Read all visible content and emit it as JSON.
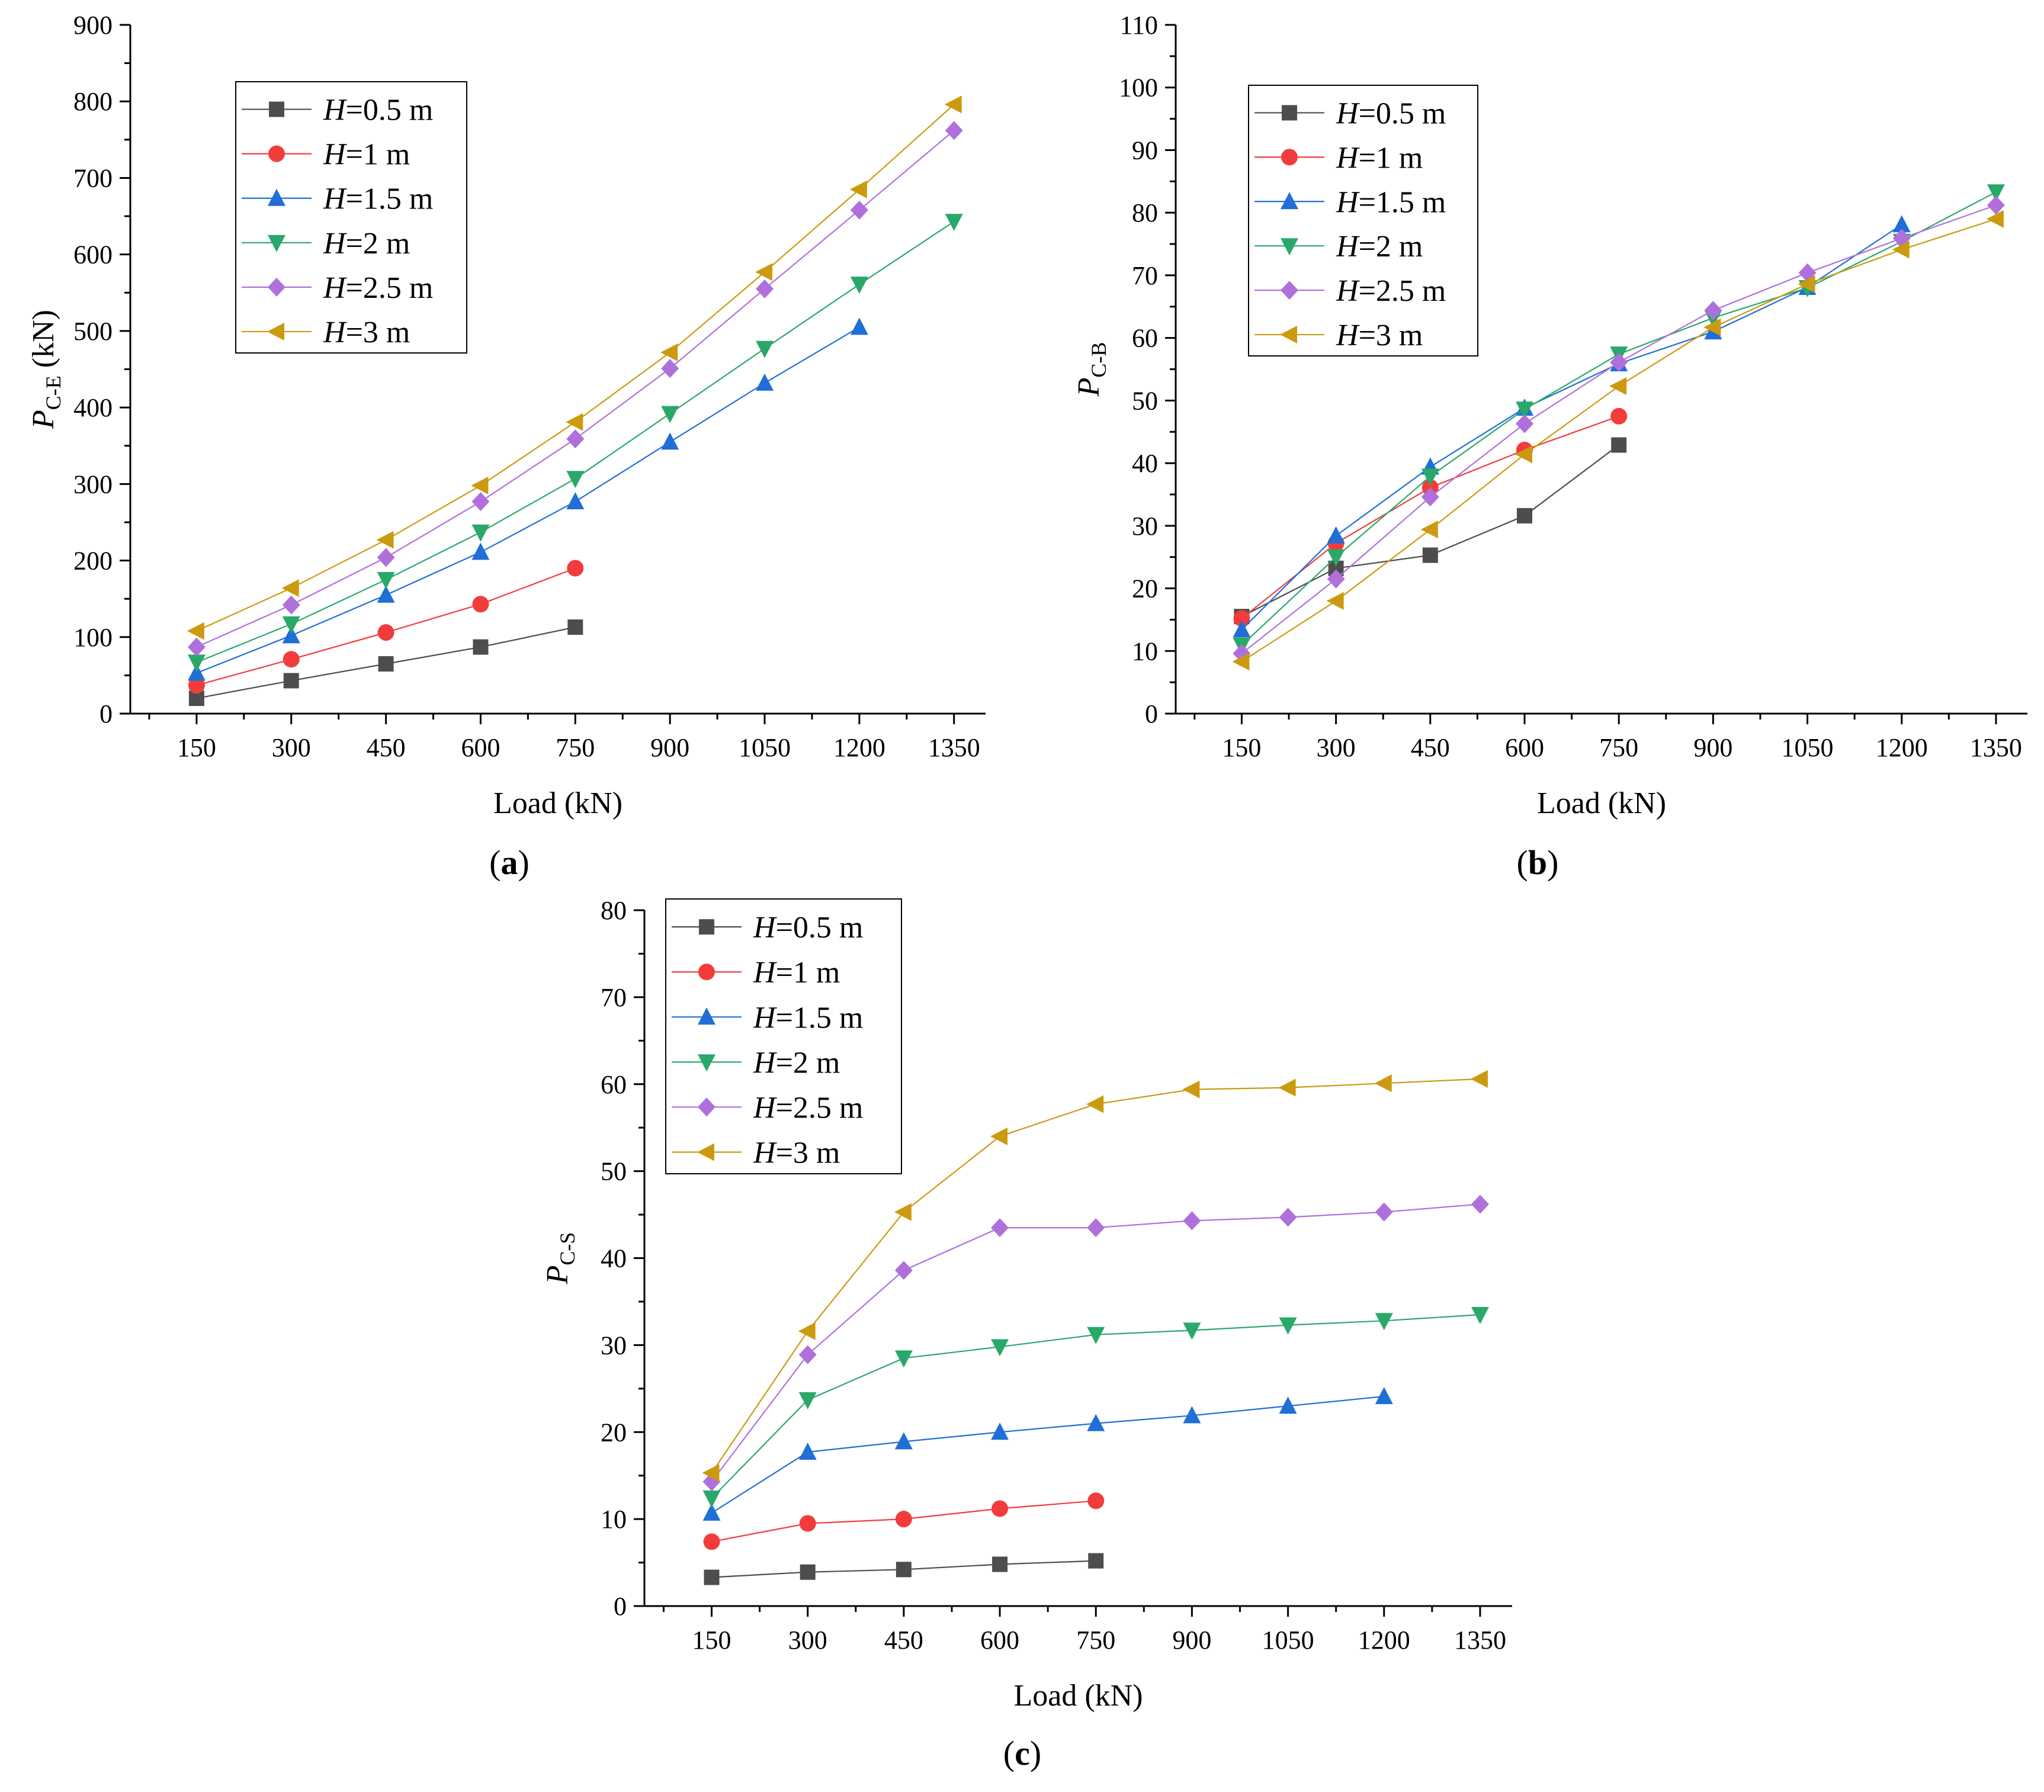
{
  "series_styles": [
    {
      "label_value": "0.5 m",
      "color": "#4d4d4d",
      "marker": "square"
    },
    {
      "label_value": "1 m",
      "color": "#f23c3c",
      "marker": "circle"
    },
    {
      "label_value": "1.5 m",
      "color": "#1f6fd6",
      "marker": "triangle-up"
    },
    {
      "label_value": "2 m",
      "color": "#2aa86a",
      "marker": "triangle-down"
    },
    {
      "label_value": "2.5 m",
      "color": "#b070dc",
      "marker": "diamond"
    },
    {
      "label_value": "3 m",
      "color": "#cc9a10",
      "marker": "triangle-left"
    }
  ],
  "legend_prefix": "H",
  "legend_eq": "=",
  "chart_data": [
    {
      "type": "line",
      "panel_label": "(a)",
      "title": "",
      "xlabel": "Load (kN)",
      "ylabel_main": "P",
      "ylabel_sub": "C-E",
      "ylabel_unit": " (kN)",
      "x_ticks": [
        150,
        300,
        450,
        600,
        750,
        900,
        1050,
        1200,
        1350
      ],
      "xlim": [
        45,
        1400
      ],
      "ylim": [
        0,
        900
      ],
      "y_ticks": [
        0,
        100,
        200,
        300,
        400,
        500,
        600,
        700,
        800,
        900
      ],
      "legend_position": "top-left",
      "series": [
        {
          "name": "H=0.5 m",
          "x": [
            150,
            300,
            450,
            600,
            750
          ],
          "values": [
            20,
            43,
            65,
            87,
            113
          ]
        },
        {
          "name": "H=1 m",
          "x": [
            150,
            300,
            450,
            600,
            750
          ],
          "values": [
            37,
            71,
            106,
            143,
            190
          ]
        },
        {
          "name": "H=1.5 m",
          "x": [
            150,
            300,
            450,
            600,
            750,
            900,
            1050,
            1200
          ],
          "values": [
            53,
            102,
            155,
            211,
            277,
            355,
            432,
            505
          ]
        },
        {
          "name": "H=2 m",
          "x": [
            150,
            300,
            450,
            600,
            750,
            900,
            1050,
            1200,
            1350
          ],
          "values": [
            67,
            117,
            175,
            237,
            307,
            392,
            477,
            561,
            643
          ]
        },
        {
          "name": "H=2.5 m",
          "x": [
            150,
            300,
            450,
            600,
            750,
            900,
            1050,
            1200,
            1350
          ],
          "values": [
            87,
            142,
            204,
            277,
            359,
            451,
            555,
            658,
            762
          ]
        },
        {
          "name": "H=3 m",
          "x": [
            150,
            300,
            450,
            600,
            750,
            900,
            1050,
            1200,
            1350
          ],
          "values": [
            108,
            164,
            227,
            298,
            381,
            472,
            577,
            685,
            796
          ]
        }
      ]
    },
    {
      "type": "line",
      "panel_label": "(b)",
      "title": "",
      "xlabel": "Load (kN)",
      "ylabel_main": "P",
      "ylabel_sub": "C-B",
      "ylabel_unit": "",
      "x_ticks": [
        150,
        300,
        450,
        600,
        750,
        900,
        1050,
        1200,
        1350
      ],
      "xlim": [
        45,
        1400
      ],
      "ylim": [
        0,
        110
      ],
      "y_ticks": [
        0,
        10,
        20,
        30,
        40,
        50,
        60,
        70,
        80,
        90,
        100,
        110
      ],
      "legend_position": "top-left",
      "series": [
        {
          "name": "H=0.5 m",
          "x": [
            150,
            300,
            450,
            600,
            750
          ],
          "values": [
            15.5,
            23.2,
            25.3,
            31.6,
            42.9
          ]
        },
        {
          "name": "H=1 m",
          "x": [
            150,
            300,
            450,
            600,
            750
          ],
          "values": [
            15.2,
            27.2,
            36.1,
            42.1,
            47.5
          ]
        },
        {
          "name": "H=1.5 m",
          "x": [
            150,
            300,
            450,
            600,
            750,
            900,
            1050,
            1200
          ],
          "values": [
            13.4,
            28.4,
            39.4,
            48.8,
            55.9,
            61.0,
            68.1,
            78.1
          ]
        },
        {
          "name": "H=2 m",
          "x": [
            150,
            300,
            450,
            600,
            750,
            900,
            1050,
            1200,
            1350
          ],
          "values": [
            10.9,
            25.0,
            37.9,
            48.6,
            57.4,
            63.2,
            68.0,
            75.4,
            83.3
          ]
        },
        {
          "name": "H=2.5 m",
          "x": [
            150,
            300,
            450,
            600,
            750,
            900,
            1050,
            1200,
            1350
          ],
          "values": [
            9.6,
            21.5,
            34.6,
            46.3,
            56.1,
            64.4,
            70.4,
            75.9,
            81.2
          ]
        },
        {
          "name": "H=3 m",
          "x": [
            150,
            300,
            450,
            600,
            750,
            900,
            1050,
            1200,
            1350
          ],
          "values": [
            8.3,
            18.0,
            29.4,
            41.4,
            52.3,
            61.7,
            68.6,
            74.1,
            79.0
          ]
        }
      ]
    },
    {
      "type": "line",
      "panel_label": "(c)",
      "title": "",
      "xlabel": "Load (kN)",
      "ylabel_main": "P",
      "ylabel_sub": "C-S",
      "ylabel_unit": "",
      "x_ticks": [
        150,
        300,
        450,
        600,
        750,
        900,
        1050,
        1200,
        1350
      ],
      "xlim": [
        45,
        1400
      ],
      "ylim": [
        0,
        80
      ],
      "y_ticks": [
        0,
        10,
        20,
        30,
        40,
        50,
        60,
        70,
        80
      ],
      "legend_position": "top-left",
      "series": [
        {
          "name": "H=0.5 m",
          "x": [
            150,
            300,
            450,
            600,
            750
          ],
          "values": [
            3.3,
            3.9,
            4.2,
            4.8,
            5.2
          ]
        },
        {
          "name": "H=1 m",
          "x": [
            150,
            300,
            450,
            600,
            750
          ],
          "values": [
            7.4,
            9.5,
            10.0,
            11.2,
            12.1
          ]
        },
        {
          "name": "H=1.5 m",
          "x": [
            150,
            300,
            450,
            600,
            750,
            900,
            1050,
            1200
          ],
          "values": [
            10.7,
            17.7,
            18.9,
            20.0,
            21.0,
            21.9,
            23.0,
            24.1
          ]
        },
        {
          "name": "H=2 m",
          "x": [
            150,
            300,
            450,
            600,
            750,
            900,
            1050,
            1200,
            1350
          ],
          "values": [
            12.4,
            23.7,
            28.5,
            29.8,
            31.2,
            31.7,
            32.3,
            32.8,
            33.5
          ]
        },
        {
          "name": "H=2.5 m",
          "x": [
            150,
            300,
            450,
            600,
            750,
            900,
            1050,
            1200,
            1350
          ],
          "values": [
            14.3,
            28.9,
            38.6,
            43.5,
            43.5,
            44.3,
            44.7,
            45.3,
            46.2
          ]
        },
        {
          "name": "H=3 m",
          "x": [
            150,
            300,
            450,
            600,
            750,
            900,
            1050,
            1200,
            1350
          ],
          "values": [
            15.3,
            31.6,
            45.3,
            54.0,
            57.7,
            59.4,
            59.6,
            60.1,
            60.6
          ]
        }
      ]
    }
  ]
}
